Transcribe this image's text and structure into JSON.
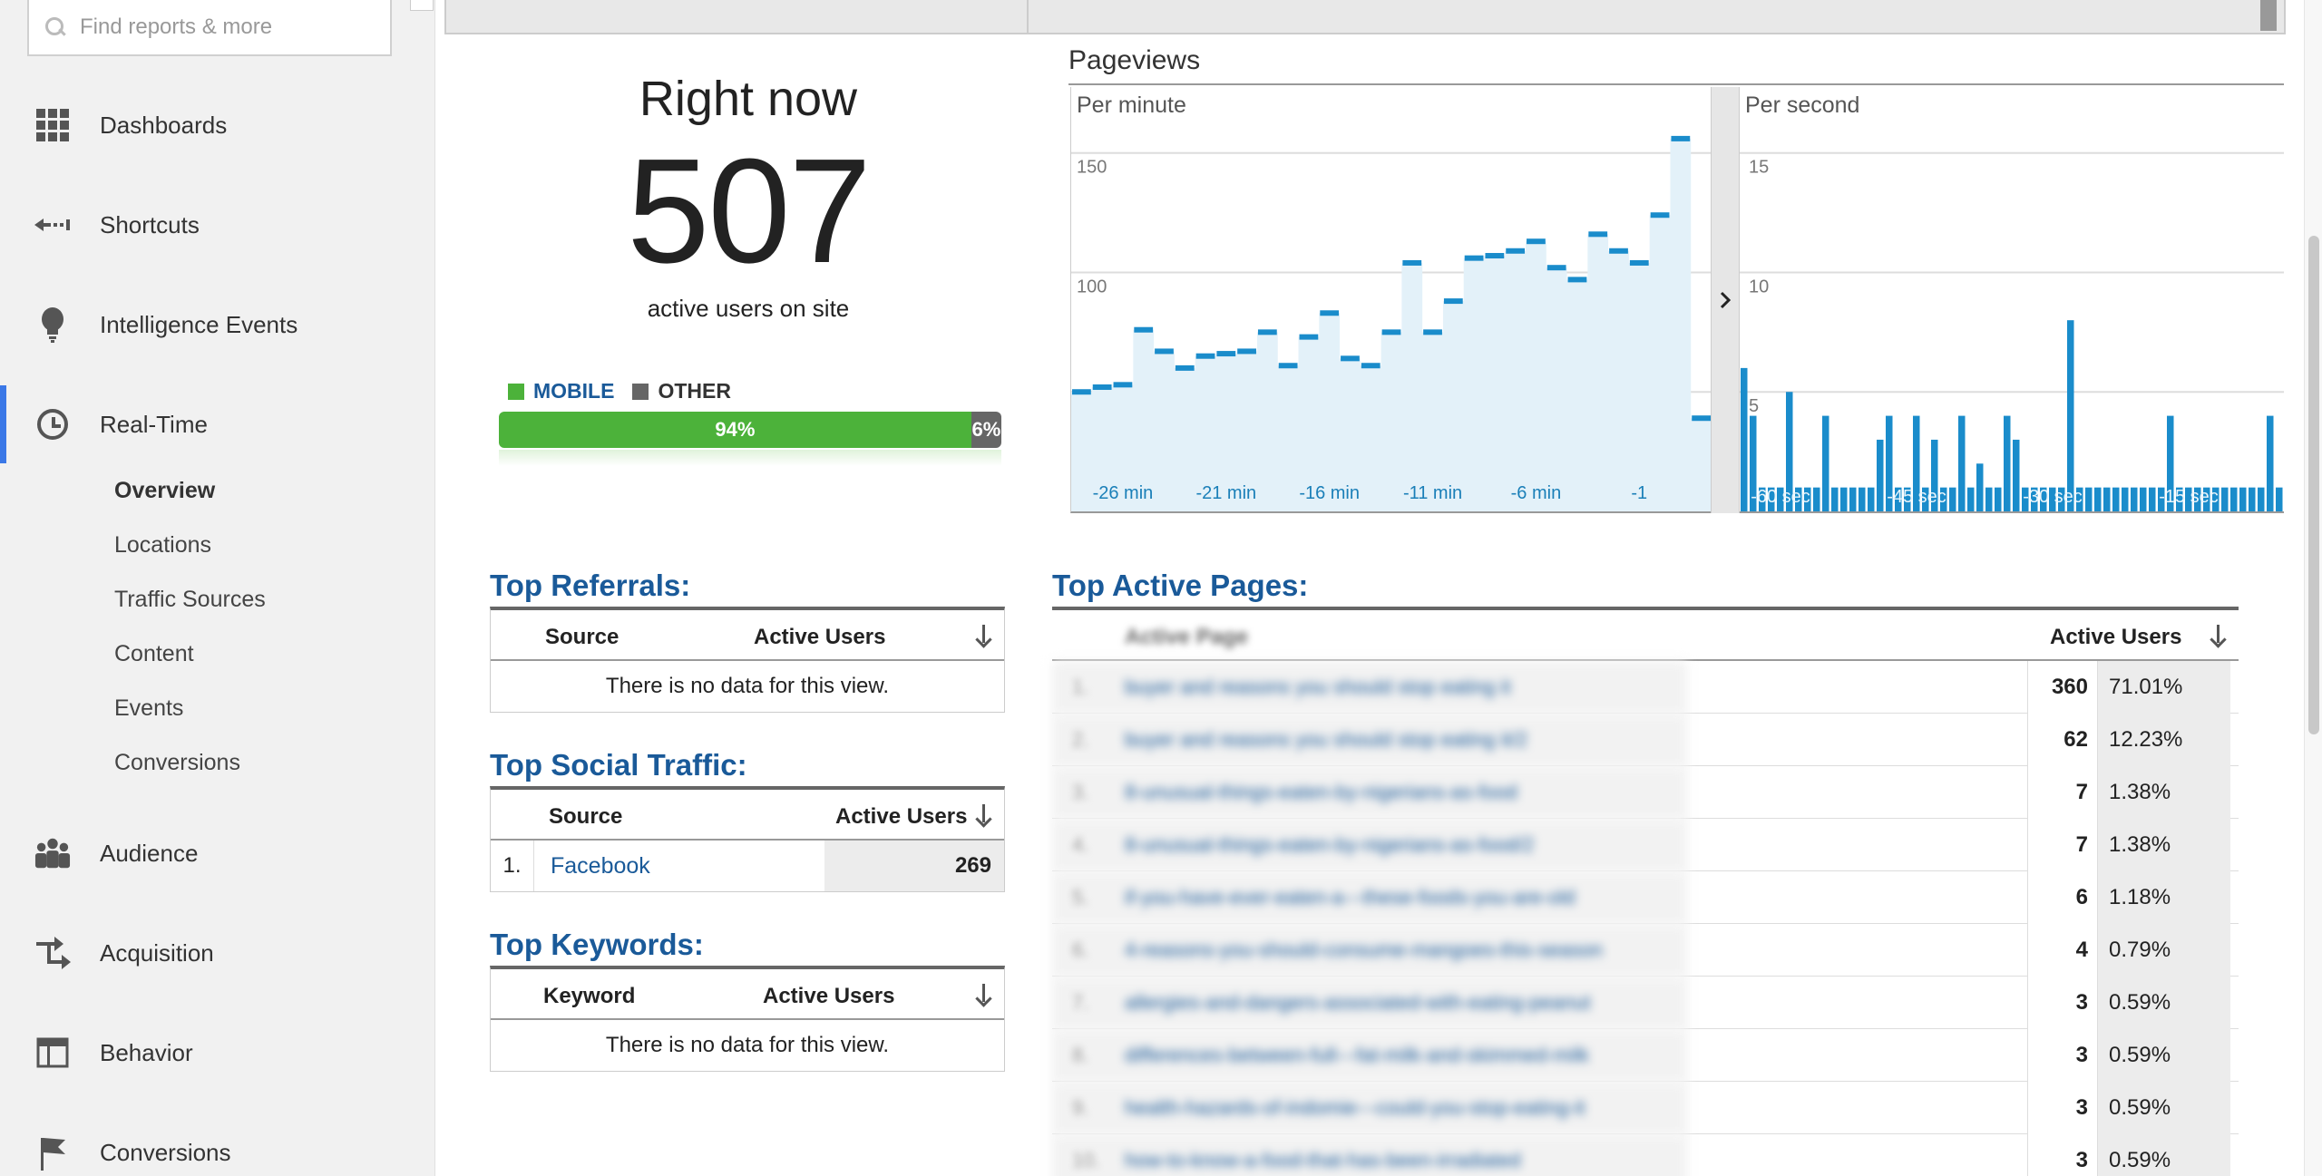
{
  "search": {
    "placeholder": "Find reports & more",
    "value": ""
  },
  "sidebar": {
    "items": [
      {
        "label": "Dashboards",
        "icon": "dashboards-grid-icon"
      },
      {
        "label": "Shortcuts",
        "icon": "shortcuts-arrow-icon"
      },
      {
        "label": "Intelligence Events",
        "icon": "lightbulb-icon"
      },
      {
        "label": "Real-Time",
        "icon": "clock-icon",
        "active": true
      },
      {
        "label": "Audience",
        "icon": "people-icon"
      },
      {
        "label": "Acquisition",
        "icon": "acquisition-arrows-icon"
      },
      {
        "label": "Behavior",
        "icon": "layout-icon"
      },
      {
        "label": "Conversions",
        "icon": "flag-icon"
      }
    ],
    "realtime_sub": [
      "Overview",
      "Locations",
      "Traffic Sources",
      "Content",
      "Events",
      "Conversions"
    ],
    "selected_sub": "Overview"
  },
  "right_now": {
    "title": "Right now",
    "count": "507",
    "subtitle": "active users on site",
    "legend": {
      "mobile": "MOBILE",
      "other": "OTHER"
    },
    "mobile_pct": 94,
    "mobile_label": "94%",
    "other_label": "6%",
    "colors": {
      "mobile": "#4cb23a",
      "other": "#666666"
    }
  },
  "pageviews": {
    "title": "Pageviews",
    "per_minute_label": "Per minute",
    "per_second_label": "Per second"
  },
  "chart_data": [
    {
      "type": "bar",
      "name_label": "Per minute",
      "x_tick_labels": [
        "-26 min",
        "-21 min",
        "-16 min",
        "-11 min",
        "-6 min",
        "-1"
      ],
      "y_ticks": [
        50,
        100,
        150
      ],
      "ylim": [
        0,
        170
      ],
      "values": [
        50,
        52,
        53,
        76,
        67,
        60,
        65,
        66,
        67,
        75,
        61,
        73,
        83,
        64,
        61,
        75,
        104,
        75,
        88,
        106,
        107,
        109,
        113,
        102,
        97,
        116,
        109,
        104,
        124,
        156,
        39
      ],
      "color": "#1a8ccb"
    },
    {
      "type": "bar",
      "name_label": "Per second",
      "x_tick_labels": [
        "-60 sec",
        "-45 sec",
        "-30 sec",
        "-15 sec"
      ],
      "y_ticks": [
        5,
        10,
        15
      ],
      "ylim": [
        0,
        17
      ],
      "values": [
        6,
        4,
        1,
        1,
        1,
        5,
        1,
        1,
        1,
        4,
        1,
        1,
        1,
        1,
        1,
        3,
        4,
        1,
        1,
        4,
        1,
        3,
        1,
        1,
        4,
        1,
        2,
        1,
        1,
        4,
        3,
        1,
        1,
        1,
        1,
        1,
        8,
        1,
        1,
        1,
        1,
        1,
        1,
        1,
        1,
        1,
        1,
        4,
        1,
        1,
        1,
        1,
        1,
        1,
        1,
        1,
        1,
        1,
        4,
        1
      ],
      "color": "#1a8ccb"
    }
  ],
  "top_referrals": {
    "title": "Top Referrals:",
    "col_source": "Source",
    "col_users": "Active Users",
    "empty": "There is no data for this view."
  },
  "top_social": {
    "title": "Top Social Traffic:",
    "col_source": "Source",
    "col_users": "Active Users",
    "rows": [
      {
        "rank": "1.",
        "source": "Facebook",
        "users": "269"
      }
    ]
  },
  "top_keywords": {
    "title": "Top Keywords:",
    "col_keyword": "Keyword",
    "col_users": "Active Users",
    "empty": "There is no data for this view."
  },
  "top_pages": {
    "title": "Top Active Pages:",
    "col_page": "Active Page",
    "col_users": "Active Users",
    "rows": [
      {
        "rank": "1.",
        "page": "buyer and reasons you should stop eating it",
        "users": "360",
        "pct": "71.01%"
      },
      {
        "rank": "2.",
        "page": "buyer and reasons you should stop eating it/2",
        "users": "62",
        "pct": "12.23%"
      },
      {
        "rank": "3.",
        "page": "8-unusual-things-eaten-by-nigerians-as-food",
        "users": "7",
        "pct": "1.38%"
      },
      {
        "rank": "4.",
        "page": "8-unusual-things-eaten-by-nigerians-as-food/2",
        "users": "7",
        "pct": "1.38%"
      },
      {
        "rank": "5.",
        "page": "if-you-have-ever-eaten-a---these-foods-you-are-old",
        "users": "6",
        "pct": "1.18%"
      },
      {
        "rank": "6.",
        "page": "4-reasons-you-should-consume-mangoes-this-season",
        "users": "4",
        "pct": "0.79%"
      },
      {
        "rank": "7.",
        "page": "allergies-and-dangers-associated-with-eating-peanut",
        "users": "3",
        "pct": "0.59%"
      },
      {
        "rank": "8.",
        "page": "differences-between-full---fat-milk-and-skimmed-milk",
        "users": "3",
        "pct": "0.59%"
      },
      {
        "rank": "9.",
        "page": "health-hazards-of-indomie---could-you-stop-eating-it",
        "users": "3",
        "pct": "0.59%"
      },
      {
        "rank": "10.",
        "page": "how-to-know-a-food-that-has-been-irradiated",
        "users": "3",
        "pct": "0.59%"
      }
    ]
  }
}
